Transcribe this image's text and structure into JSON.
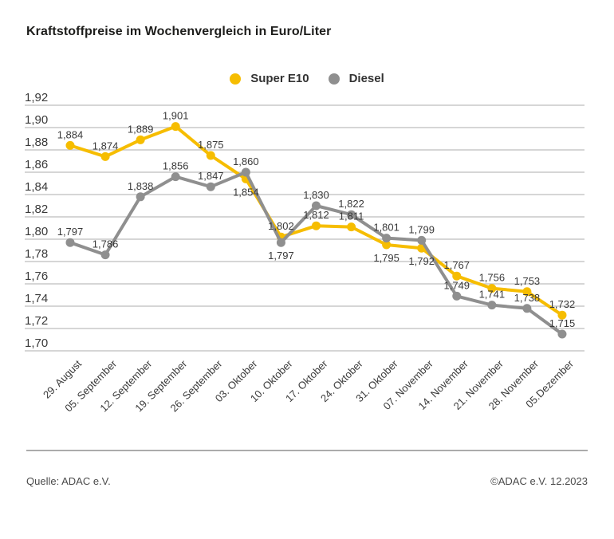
{
  "header": {
    "title": "Kraftstoffpreise im Wochenvergleich in Euro/Liter"
  },
  "legend": [
    {
      "label": "Super E10",
      "color": "#f6bd00"
    },
    {
      "label": "Diesel",
      "color": "#8f8f8f"
    }
  ],
  "chart_data": {
    "type": "line",
    "title": "Kraftstoffpreise im Wochenvergleich in Euro/Liter",
    "unit": "Euro/Liter",
    "categories": [
      "29. August",
      "05. September",
      "12. September",
      "19. September",
      "26. September",
      "03. Oktober",
      "10. Oktober",
      "17. Oktober",
      "24. Oktober",
      "31. Oktober",
      "07. November",
      "14. November",
      "21. November",
      "28. November",
      "05.Dezember"
    ],
    "series": [
      {
        "name": "Super E10",
        "color": "#f6bd00",
        "values": [
          1.884,
          1.874,
          1.889,
          1.901,
          1.875,
          1.854,
          1.802,
          1.812,
          1.811,
          1.795,
          1.792,
          1.767,
          1.756,
          1.753,
          1.732
        ],
        "label_below_indices": [
          5,
          9,
          10
        ]
      },
      {
        "name": "Diesel",
        "color": "#8f8f8f",
        "values": [
          1.797,
          1.786,
          1.838,
          1.856,
          1.847,
          1.86,
          1.797,
          1.83,
          1.822,
          1.801,
          1.799,
          1.749,
          1.741,
          1.738,
          1.715
        ],
        "label_below_indices": [
          6
        ]
      }
    ],
    "ylim": [
      1.7,
      1.92
    ],
    "ytick_step": 0.02,
    "ytick_labels": [
      "1,92",
      "1,90",
      "1,88",
      "1,86",
      "1,84",
      "1,82",
      "1,80",
      "1,78",
      "1,76",
      "1,74",
      "1,72",
      "1,70"
    ],
    "decimal_separator": ",",
    "grid": "horizontal",
    "gridline_color": "#c8c8c8",
    "text_color": "#3a3a3a",
    "legend_position": "top-center",
    "point_labels_visible": true
  },
  "footer": {
    "source_left": "Quelle: ADAC e.V.",
    "source_right": "©ADAC e.V. 12.2023"
  }
}
